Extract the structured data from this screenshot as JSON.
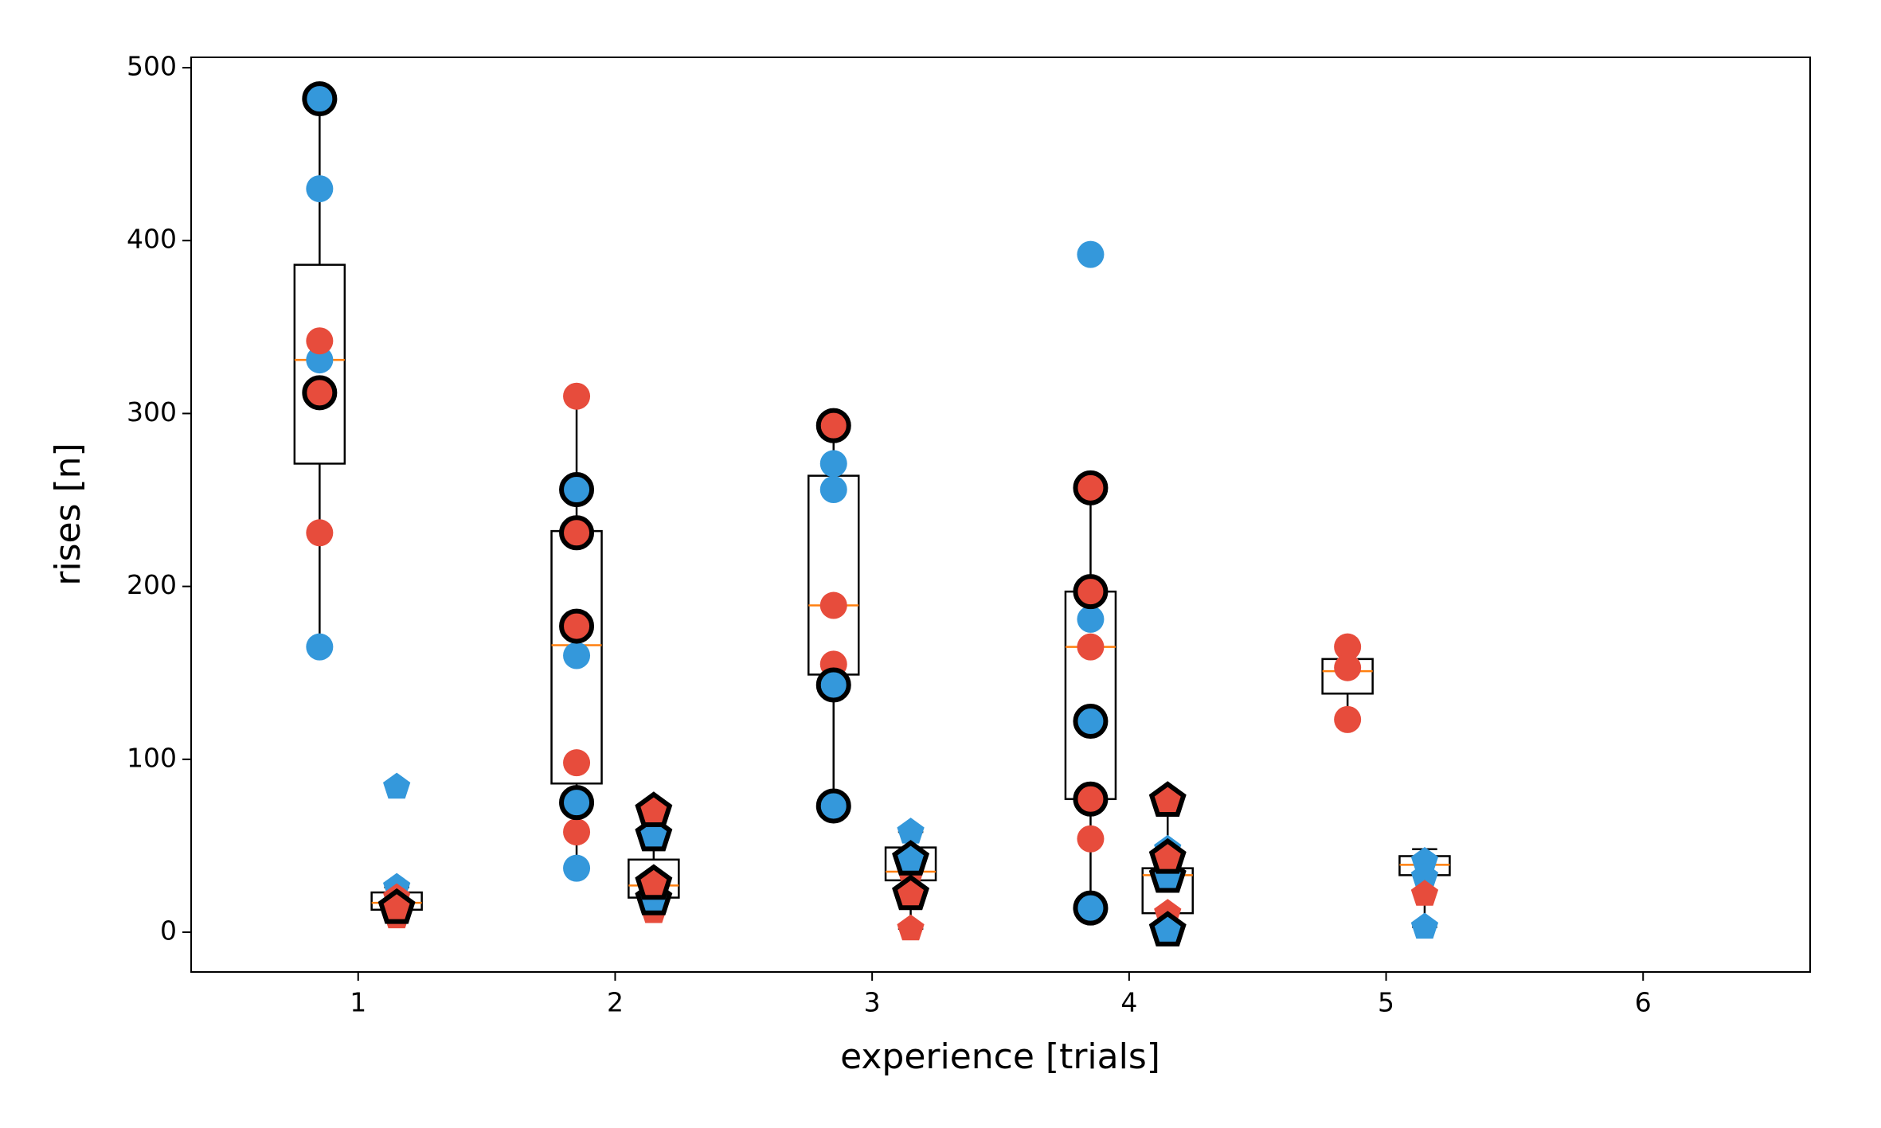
{
  "chart_data": {
    "type": "scatter",
    "x_label": "experience [trials]",
    "y_label": "rises [n]",
    "xlim": [
      0.35,
      6.65
    ],
    "ylim": [
      -23,
      506
    ],
    "xticks": [
      1,
      2,
      3,
      4,
      5,
      6
    ],
    "yticks": [
      0,
      100,
      200,
      300,
      400,
      500
    ],
    "boxes": [
      {
        "x": 0.85,
        "whislo": 165,
        "q1": 271,
        "med": 331,
        "q3": 386,
        "whishi": 482
      },
      {
        "x": 1.15,
        "whislo": 9,
        "q1": 13,
        "med": 17,
        "q3": 23,
        "whishi": 26
      },
      {
        "x": 1.85,
        "whislo": 37,
        "q1": 86,
        "med": 166,
        "q3": 232,
        "whishi": 310
      },
      {
        "x": 2.15,
        "whislo": 12,
        "q1": 20,
        "med": 27,
        "q3": 42,
        "whishi": 70
      },
      {
        "x": 2.85,
        "whislo": 73,
        "q1": 149,
        "med": 189,
        "q3": 264,
        "whishi": 293
      },
      {
        "x": 3.15,
        "whislo": 2,
        "q1": 30,
        "med": 35,
        "q3": 49,
        "whishi": 58
      },
      {
        "x": 3.85,
        "whislo": 14,
        "q1": 77,
        "med": 165,
        "q3": 197,
        "whishi": 257
      },
      {
        "x": 4.15,
        "whislo": 1,
        "q1": 11,
        "med": 33,
        "q3": 37,
        "whishi": 76
      },
      {
        "x": 4.85,
        "whislo": 123,
        "q1": 138,
        "med": 151,
        "q3": 158,
        "whishi": 165
      },
      {
        "x": 5.15,
        "whislo": 3,
        "q1": 33,
        "med": 39,
        "q3": 44,
        "whishi": 48
      }
    ],
    "series": [
      {
        "color": "#3498db",
        "marker": "circle",
        "x": [
          0.85,
          0.85,
          0.85,
          1.85,
          1.85,
          2.85,
          2.85,
          3.85,
          3.85
        ],
        "values": [
          430,
          331,
          165,
          160,
          37,
          271,
          256,
          392,
          181
        ]
      },
      {
        "color": "#e74c3c",
        "marker": "circle",
        "x": [
          0.85,
          0.85,
          1.85,
          1.85,
          1.85,
          2.85,
          2.85,
          3.85,
          3.85,
          4.85,
          4.85,
          4.85
        ],
        "values": [
          342,
          231,
          310,
          98,
          58,
          189,
          155,
          165,
          54,
          165,
          153,
          123
        ]
      },
      {
        "color": "#3498db",
        "marker": "pentagon",
        "x": [
          1.15,
          1.15,
          3.15,
          4.15,
          5.15,
          5.15,
          5.15
        ],
        "values": [
          84,
          26,
          58,
          48,
          41,
          32,
          3
        ]
      },
      {
        "color": "#e74c3c",
        "marker": "pentagon",
        "x": [
          1.15,
          1.15,
          2.15,
          3.15,
          3.15,
          4.15,
          5.15
        ],
        "values": [
          20,
          9,
          12,
          34,
          2,
          11,
          22
        ]
      },
      {
        "color": "#3498db",
        "marker": "circle",
        "edgecolor": "#000000",
        "x": [
          0.85,
          1.85,
          1.85,
          2.85,
          2.85,
          3.85,
          3.85
        ],
        "values": [
          482,
          256,
          75,
          143,
          73,
          122,
          14
        ]
      },
      {
        "color": "#e74c3c",
        "marker": "circle",
        "edgecolor": "#000000",
        "x": [
          0.85,
          1.85,
          1.85,
          2.85,
          3.85,
          3.85,
          3.85
        ],
        "values": [
          312,
          231,
          177,
          293,
          257,
          197,
          77
        ]
      },
      {
        "color": "#3498db",
        "marker": "pentagon",
        "edgecolor": "#000000",
        "x": [
          2.15,
          2.15,
          3.15,
          4.15,
          4.15
        ],
        "values": [
          56,
          19,
          42,
          32,
          1
        ]
      },
      {
        "color": "#e74c3c",
        "marker": "pentagon",
        "edgecolor": "#000000",
        "x": [
          1.15,
          2.15,
          2.15,
          3.15,
          4.15,
          4.15
        ],
        "values": [
          14,
          70,
          28,
          22,
          76,
          43
        ]
      }
    ]
  }
}
